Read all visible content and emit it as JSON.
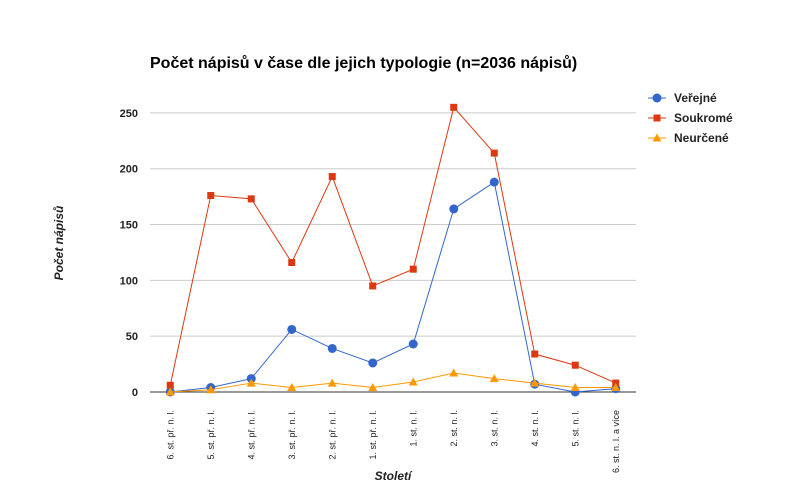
{
  "chart_data": {
    "type": "line",
    "title": "Počet nápisů v čase dle jejich typologie (n=2036 nápisů)",
    "xlabel": "Století",
    "ylabel": "Počet nápisů",
    "ylim": [
      0,
      275
    ],
    "yticks": [
      0,
      50,
      100,
      150,
      200,
      250
    ],
    "grid": true,
    "legend_position": "right",
    "categories": [
      "6. st. př. n. l.",
      "5. st. př. n. l.",
      "4. st. př. n. l.",
      "3. st. př. n. l.",
      "2. st. př. n. l.",
      "1. st. př. n. l.",
      "1. st. n. l.",
      "2. st. n. l.",
      "3. st. n. l.",
      "4. st. n. l.",
      "5. st. n. l.",
      "6. st. n. l. a více"
    ],
    "series": [
      {
        "name": "Veřejné",
        "color": "#3366cc",
        "marker": "circle",
        "values": [
          0,
          4,
          12,
          56,
          39,
          26,
          43,
          164,
          188,
          7,
          0,
          3
        ]
      },
      {
        "name": "Soukromé",
        "color": "#dc3912",
        "marker": "square",
        "values": [
          6,
          176,
          173,
          116,
          193,
          95,
          110,
          255,
          214,
          34,
          24,
          8
        ]
      },
      {
        "name": "Neurčené",
        "color": "#ff9900",
        "marker": "triangle",
        "values": [
          0,
          2,
          8,
          4,
          8,
          4,
          9,
          17,
          12,
          8,
          4,
          4
        ]
      }
    ]
  }
}
